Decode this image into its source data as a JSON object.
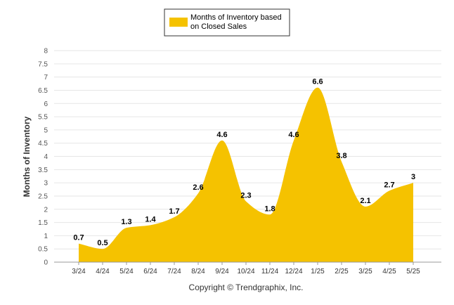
{
  "chart_data": {
    "type": "area",
    "categories": [
      "3/24",
      "4/24",
      "5/24",
      "6/24",
      "7/24",
      "8/24",
      "9/24",
      "10/24",
      "11/24",
      "12/24",
      "1/25",
      "2/25",
      "3/25",
      "4/25",
      "5/25"
    ],
    "series": [
      {
        "name_lines": [
          "Months of Inventory based",
          "on Closed Sales"
        ],
        "values": [
          0.7,
          0.5,
          1.3,
          1.4,
          1.7,
          2.6,
          4.6,
          2.3,
          1.8,
          4.6,
          6.6,
          3.8,
          2.1,
          2.7,
          3
        ],
        "labels": [
          "0.7",
          "0.5",
          "1.3",
          "1.4",
          "1.7",
          "2.6",
          "4.6",
          "2.3",
          "1.8",
          "4.6",
          "6.6",
          "3.8",
          "2.1",
          "2.7",
          "3"
        ],
        "color": "#F5C200"
      }
    ],
    "ylabel": "Months of Inventory",
    "ylim": [
      0,
      8
    ],
    "yticks": [
      "0",
      "0.5",
      "1",
      "1.5",
      "2",
      "2.5",
      "3",
      "3.5",
      "4",
      "4.5",
      "5",
      "5.5",
      "6",
      "6.5",
      "7",
      "7.5",
      "8"
    ],
    "grid": true,
    "legend_position": "top-center"
  },
  "footer": "Copyright © Trendgraphix, Inc."
}
